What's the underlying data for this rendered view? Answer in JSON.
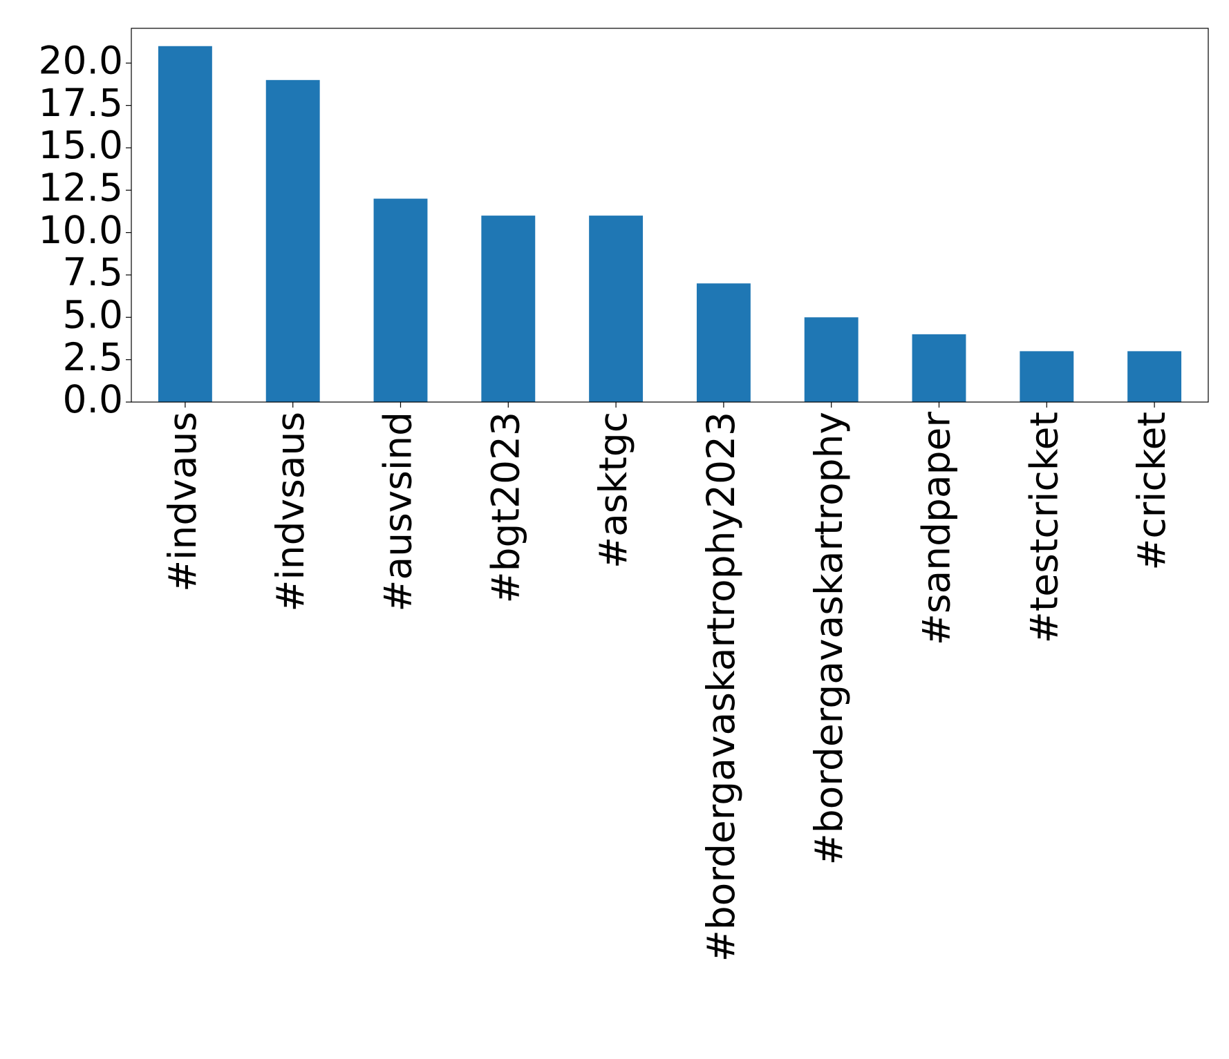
{
  "chart_data": {
    "type": "bar",
    "categories": [
      "#indvaus",
      "#indvsaus",
      "#ausvsind",
      "#bgt2023",
      "#asktgc",
      "#bordergavaskartrophy2023",
      "#bordergavaskartrophy",
      "#sandpaper",
      "#testcricket",
      "#cricket"
    ],
    "values": [
      21,
      19,
      12,
      11,
      11,
      7,
      5,
      4,
      3,
      3
    ],
    "color": "#1f77b4",
    "ylim": [
      0,
      22.05
    ],
    "yticks": [
      {
        "value": 0,
        "label": "0.0"
      },
      {
        "value": 2.5,
        "label": "2.5"
      },
      {
        "value": 5,
        "label": "5.0"
      },
      {
        "value": 7.5,
        "label": "7.5"
      },
      {
        "value": 10,
        "label": "10.0"
      },
      {
        "value": 12.5,
        "label": "12.5"
      },
      {
        "value": 15,
        "label": "15.0"
      },
      {
        "value": 17.5,
        "label": "17.5"
      },
      {
        "value": 20,
        "label": "20.0"
      }
    ]
  }
}
